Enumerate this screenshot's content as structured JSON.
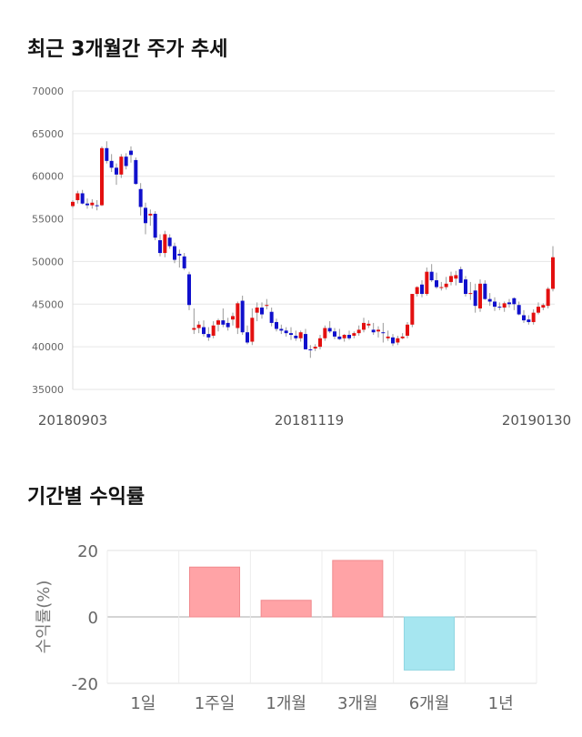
{
  "titles": {
    "price": "최근 3개월간 주가 추세",
    "returns": "기간별 수익률"
  },
  "colors": {
    "up": "#e31010",
    "down": "#1010cc",
    "grid": "#e6e6e6",
    "positive_bar": "#ffa3a6",
    "negative_bar": "#a6e6f0"
  },
  "chart_data": [
    {
      "type": "candlestick",
      "title": "최근 3개월간 주가 추세",
      "ylim": [
        35000,
        70000
      ],
      "yticks": [
        "70000",
        "65000",
        "60000",
        "55000",
        "50000",
        "45000",
        "40000",
        "35000"
      ],
      "xtick_labels": [
        "20180903",
        "20181119",
        "20190130"
      ],
      "grid": true,
      "candles": [
        [
          56500,
          57200,
          56300,
          57000
        ],
        [
          57200,
          58300,
          56800,
          58000
        ],
        [
          58000,
          58400,
          56700,
          56800
        ],
        [
          56800,
          57400,
          56200,
          56600
        ],
        [
          56600,
          57300,
          56200,
          56900
        ],
        [
          56600,
          57200,
          56000,
          56500
        ],
        [
          56600,
          63500,
          56500,
          63300
        ],
        [
          63300,
          64100,
          61500,
          61800
        ],
        [
          61800,
          62600,
          60500,
          61000
        ],
        [
          61000,
          61500,
          59000,
          60200
        ],
        [
          60200,
          62600,
          59800,
          62300
        ],
        [
          62300,
          62700,
          60800,
          61200
        ],
        [
          63000,
          63500,
          61600,
          62500
        ],
        [
          61900,
          62200,
          59000,
          59100
        ],
        [
          58500,
          59200,
          55400,
          56400
        ],
        [
          56300,
          56900,
          53200,
          54500
        ],
        [
          55400,
          56100,
          54200,
          55600
        ],
        [
          55600,
          55900,
          52500,
          52800
        ],
        [
          52500,
          53200,
          50600,
          51000
        ],
        [
          51000,
          53600,
          50500,
          53200
        ],
        [
          52800,
          53200,
          51500,
          51800
        ],
        [
          51800,
          52200,
          49800,
          50200
        ],
        [
          50900,
          51400,
          49300,
          50700
        ],
        [
          50600,
          51000,
          49000,
          49200
        ],
        [
          48500,
          48800,
          44300,
          44900
        ],
        [
          42000,
          44500,
          41500,
          42200
        ],
        [
          42200,
          43000,
          41600,
          42600
        ],
        [
          42300,
          43100,
          41200,
          41500
        ],
        [
          41500,
          42300,
          40700,
          41100
        ],
        [
          41300,
          43000,
          41000,
          42500
        ],
        [
          42600,
          43300,
          41800,
          43100
        ],
        [
          43100,
          44500,
          42300,
          42600
        ],
        [
          42800,
          43400,
          41900,
          42300
        ],
        [
          43200,
          44000,
          42500,
          43600
        ],
        [
          42200,
          45300,
          41500,
          45100
        ],
        [
          45400,
          46000,
          41400,
          41700
        ],
        [
          41700,
          42500,
          40300,
          40500
        ],
        [
          40600,
          44500,
          40200,
          43400
        ],
        [
          44000,
          45200,
          43000,
          44600
        ],
        [
          44600,
          45200,
          43300,
          43800
        ],
        [
          44800,
          45600,
          44400,
          44900
        ],
        [
          44100,
          44600,
          42400,
          42800
        ],
        [
          42900,
          43300,
          41800,
          42100
        ],
        [
          42100,
          42600,
          41500,
          41900
        ],
        [
          41900,
          42300,
          41200,
          41600
        ],
        [
          41600,
          42300,
          40800,
          41400
        ],
        [
          41300,
          41900,
          40700,
          41000
        ],
        [
          41000,
          41900,
          40600,
          41700
        ],
        [
          41500,
          42100,
          39800,
          39700
        ],
        [
          39700,
          40200,
          38700,
          39600
        ],
        [
          39800,
          40300,
          39500,
          40000
        ],
        [
          40000,
          41400,
          39700,
          41000
        ],
        [
          41000,
          42500,
          40700,
          42200
        ],
        [
          42200,
          43000,
          41600,
          41800
        ],
        [
          41800,
          42200,
          40900,
          41200
        ],
        [
          41200,
          42100,
          40800,
          40900
        ],
        [
          41000,
          41500,
          40600,
          41400
        ],
        [
          41400,
          41900,
          40800,
          41000
        ],
        [
          41300,
          41800,
          41000,
          41600
        ],
        [
          41600,
          42500,
          41300,
          42000
        ],
        [
          42000,
          43400,
          41700,
          42800
        ],
        [
          42500,
          43100,
          42200,
          42700
        ],
        [
          42000,
          42800,
          41400,
          41700
        ],
        [
          41800,
          42400,
          41100,
          42000
        ],
        [
          41700,
          42800,
          40500,
          41600
        ],
        [
          41000,
          41900,
          40700,
          41200
        ],
        [
          41100,
          41500,
          40100,
          40400
        ],
        [
          40500,
          41300,
          40200,
          41000
        ],
        [
          41000,
          41600,
          40900,
          41200
        ],
        [
          41300,
          42900,
          41000,
          42600
        ],
        [
          42600,
          46000,
          42300,
          46200
        ],
        [
          46200,
          47100,
          45900,
          47000
        ],
        [
          47300,
          47800,
          45800,
          46200
        ],
        [
          46200,
          49300,
          46000,
          48800
        ],
        [
          48800,
          49700,
          47600,
          47800
        ],
        [
          47800,
          48700,
          46800,
          47000
        ],
        [
          47000,
          47600,
          46600,
          47000
        ],
        [
          47000,
          48200,
          46700,
          47400
        ],
        [
          47600,
          48800,
          47200,
          48300
        ],
        [
          48000,
          48900,
          47200,
          48400
        ],
        [
          49100,
          49400,
          47500,
          47500
        ],
        [
          47900,
          48300,
          45900,
          46200
        ],
        [
          46200,
          47600,
          45500,
          46300
        ],
        [
          46600,
          47400,
          44000,
          44800
        ],
        [
          44500,
          47900,
          44100,
          47400
        ],
        [
          47400,
          47800,
          45500,
          45600
        ],
        [
          45600,
          46300,
          44800,
          45300
        ],
        [
          45300,
          45800,
          44200,
          44700
        ],
        [
          44700,
          45200,
          44300,
          44600
        ],
        [
          44600,
          45300,
          44100,
          45100
        ],
        [
          45200,
          45600,
          44600,
          45000
        ],
        [
          45700,
          45800,
          44300,
          45000
        ],
        [
          44900,
          45300,
          43700,
          43800
        ],
        [
          43700,
          44300,
          42800,
          43100
        ],
        [
          43200,
          43700,
          42600,
          42900
        ],
        [
          42900,
          44400,
          42600,
          44000
        ],
        [
          44000,
          45200,
          43800,
          44700
        ],
        [
          44600,
          45100,
          44300,
          44900
        ],
        [
          44800,
          47000,
          44500,
          46800
        ],
        [
          46800,
          51800,
          46500,
          50500
        ]
      ]
    },
    {
      "type": "bar",
      "title": "기간별 수익률",
      "ylabel": "수익률(%)",
      "ylim": [
        -20,
        20
      ],
      "yticks": [
        "20",
        "0",
        "-20"
      ],
      "categories": [
        "1일",
        "1주일",
        "1개월",
        "3개월",
        "6개월",
        "1년"
      ],
      "values": [
        0,
        15,
        5,
        17,
        -16,
        0
      ]
    }
  ]
}
